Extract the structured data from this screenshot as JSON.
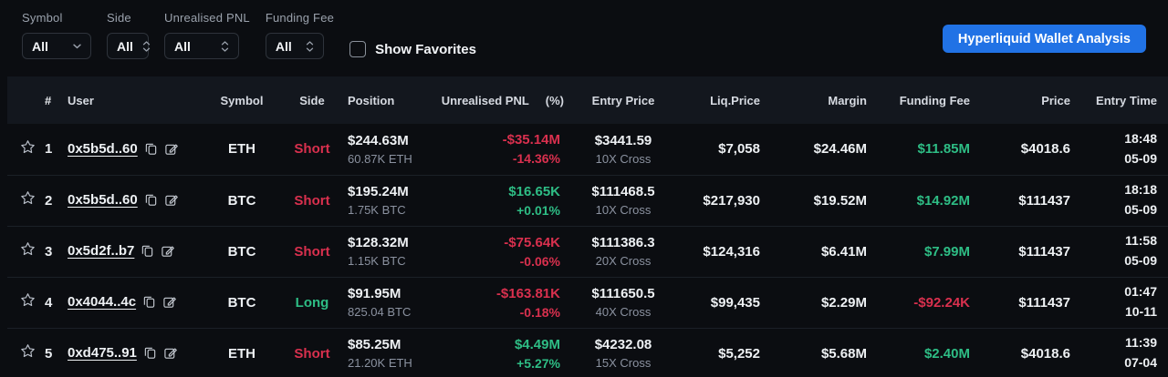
{
  "filters": {
    "symbol": {
      "label": "Symbol",
      "value": "All"
    },
    "side": {
      "label": "Side",
      "value": "All"
    },
    "unrealised_pnl": {
      "label": "Unrealised PNL",
      "value": "All"
    },
    "funding_fee": {
      "label": "Funding Fee",
      "value": "All"
    },
    "show_favorites": {
      "label": "Show Favorites",
      "checked": false
    }
  },
  "header_button": {
    "label": "Hyperliquid Wallet Analysis"
  },
  "colors": {
    "red": "#d9304e",
    "green": "#2ebd85",
    "accent_blue": "#2172e5"
  },
  "table": {
    "header": {
      "rank": "#",
      "user": "User",
      "symbol": "Symbol",
      "side": "Side",
      "position": "Position",
      "pnl": "Unrealised PNL",
      "pnl_pct": "(%)",
      "entry": "Entry Price",
      "liq": "Liq.Price",
      "margin": "Margin",
      "funding": "Funding Fee",
      "price": "Price",
      "time": "Entry Time"
    },
    "rows": [
      {
        "rank": "1",
        "user": "0x5b5d..60",
        "symbol": "ETH",
        "side": "Short",
        "side_color": "red",
        "position_value": "$244.63M",
        "position_size": "60.87K ETH",
        "pnl_value": "-$35.14M",
        "pnl_pct": "-14.36%",
        "pnl_color": "red",
        "entry_price": "$3441.59",
        "leverage": "10X Cross",
        "liq_price": "$7,058",
        "margin": "$24.46M",
        "funding_fee": "$11.85M",
        "funding_color": "green",
        "price": "$4018.6",
        "entry_time": "18:48",
        "entry_date": "05-09"
      },
      {
        "rank": "2",
        "user": "0x5b5d..60",
        "symbol": "BTC",
        "side": "Short",
        "side_color": "red",
        "position_value": "$195.24M",
        "position_size": "1.75K BTC",
        "pnl_value": "$16.65K",
        "pnl_pct": "+0.01%",
        "pnl_color": "green",
        "entry_price": "$111468.5",
        "leverage": "10X Cross",
        "liq_price": "$217,930",
        "margin": "$19.52M",
        "funding_fee": "$14.92M",
        "funding_color": "green",
        "price": "$111437",
        "entry_time": "18:18",
        "entry_date": "05-09"
      },
      {
        "rank": "3",
        "user": "0x5d2f..b7",
        "symbol": "BTC",
        "side": "Short",
        "side_color": "red",
        "position_value": "$128.32M",
        "position_size": "1.15K BTC",
        "pnl_value": "-$75.64K",
        "pnl_pct": "-0.06%",
        "pnl_color": "red",
        "entry_price": "$111386.3",
        "leverage": "20X Cross",
        "liq_price": "$124,316",
        "margin": "$6.41M",
        "funding_fee": "$7.99M",
        "funding_color": "green",
        "price": "$111437",
        "entry_time": "11:58",
        "entry_date": "05-09"
      },
      {
        "rank": "4",
        "user": "0x4044..4c",
        "symbol": "BTC",
        "side": "Long",
        "side_color": "green",
        "position_value": "$91.95M",
        "position_size": "825.04 BTC",
        "pnl_value": "-$163.81K",
        "pnl_pct": "-0.18%",
        "pnl_color": "red",
        "entry_price": "$111650.5",
        "leverage": "40X Cross",
        "liq_price": "$99,435",
        "margin": "$2.29M",
        "funding_fee": "-$92.24K",
        "funding_color": "red",
        "price": "$111437",
        "entry_time": "01:47",
        "entry_date": "10-11"
      },
      {
        "rank": "5",
        "user": "0xd475..91",
        "symbol": "ETH",
        "side": "Short",
        "side_color": "red",
        "position_value": "$85.25M",
        "position_size": "21.20K ETH",
        "pnl_value": "$4.49M",
        "pnl_pct": "+5.27%",
        "pnl_color": "green",
        "entry_price": "$4232.08",
        "leverage": "15X Cross",
        "liq_price": "$5,252",
        "margin": "$5.68M",
        "funding_fee": "$2.40M",
        "funding_color": "green",
        "price": "$4018.6",
        "entry_time": "11:39",
        "entry_date": "07-04"
      }
    ]
  }
}
